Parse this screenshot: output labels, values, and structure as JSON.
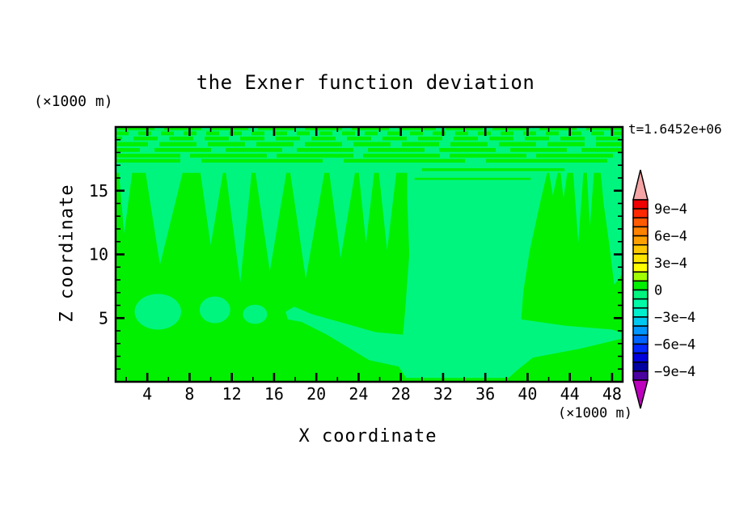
{
  "title": "the Exner function deviation",
  "labels": {
    "y_unit": "(×1000 m)",
    "x_unit": "(×1000 m)",
    "x_axis": "X coordinate",
    "y_axis": "Z coordinate",
    "time": "t=1.6452e+06"
  },
  "chart_data": {
    "type": "heatmap",
    "subtype": "filled-contour",
    "title": "the Exner function deviation",
    "xlabel": "X coordinate",
    "ylabel": "Z coordinate",
    "x_unit": "(×1000 m)",
    "y_unit": "(×1000 m)",
    "time_annotation": "t=1.6452e+06",
    "xlim": [
      1,
      49
    ],
    "ylim": [
      0,
      20
    ],
    "grid": false,
    "x_major_ticks": [
      4,
      8,
      12,
      16,
      20,
      24,
      28,
      32,
      36,
      40,
      44,
      48
    ],
    "x_minor_ticks": [
      2,
      6,
      10,
      14,
      18,
      22,
      26,
      30,
      34,
      38,
      42,
      46
    ],
    "y_major_ticks": [
      5,
      10,
      15
    ],
    "y_minor_ticks": [
      1,
      2,
      3,
      4,
      6,
      7,
      8,
      9,
      11,
      12,
      13,
      14,
      16,
      17,
      18,
      19
    ],
    "background_level_range": [
      0,
      0.0001
    ],
    "background_level_color": "#00F000",
    "feature_level_range": [
      -0.0001,
      0
    ],
    "feature_level_color": "#00F57F",
    "features": {
      "upper_band": {
        "z_top": 20,
        "z_bottom": 16.4
      },
      "streak_rows": [
        {
          "z": 19.87,
          "h": 0.26,
          "color": "bg",
          "dash": 999,
          "gap": 1,
          "offset": 0
        },
        {
          "z": 19.87,
          "h": 0.2,
          "color": "feature",
          "dash": 12,
          "gap": 46,
          "offset": 10
        },
        {
          "z": 19.5,
          "h": 0.3,
          "color": "bg",
          "dash": 16,
          "gap": 12,
          "offset": 0
        },
        {
          "z": 19.1,
          "h": 0.3,
          "color": "bg",
          "dash": 30,
          "gap": 14,
          "offset": 22
        },
        {
          "z": 18.65,
          "h": 0.33,
          "color": "bg",
          "dash": 46,
          "gap": 14,
          "offset": 6
        },
        {
          "z": 18.2,
          "h": 0.3,
          "color": "bg",
          "dash": 70,
          "gap": 18,
          "offset": 40
        },
        {
          "z": 17.75,
          "h": 0.3,
          "color": "bg",
          "dash": 95,
          "gap": 12,
          "offset": 15
        },
        {
          "z": 17.35,
          "h": 0.28,
          "color": "bg",
          "dash": 150,
          "gap": 26,
          "offset": 70
        }
      ],
      "green_cuts": [
        {
          "x0": 30.0,
          "x1": 43.5,
          "z": 16.65,
          "h": 0.22
        },
        {
          "x0": 29.3,
          "x1": 40.3,
          "z": 15.93,
          "h": 0.16
        }
      ],
      "wedges": [
        [
          1.3,
          2.6,
          1.8,
          11.6
        ],
        [
          3.8,
          7.4,
          5.2,
          9.2
        ],
        [
          9.0,
          11.2,
          10.0,
          10.7
        ],
        [
          11.4,
          13.9,
          12.8,
          7.8
        ],
        [
          14.2,
          17.2,
          15.6,
          8.7
        ],
        [
          17.5,
          20.8,
          19.0,
          8.1
        ],
        [
          21.2,
          23.7,
          22.3,
          9.7
        ],
        [
          24.0,
          25.5,
          24.7,
          10.9
        ],
        [
          25.9,
          27.6,
          26.7,
          10.3
        ],
        [
          42.0,
          42.9,
          42.4,
          14.6
        ],
        [
          43.1,
          43.8,
          43.4,
          14.4
        ],
        [
          44.3,
          45.3,
          44.8,
          10.9
        ],
        [
          45.6,
          46.3,
          45.9,
          12.2
        ]
      ],
      "right_edge_wedge": [
        [
          46.9,
          16.6
        ],
        [
          49.0,
          16.6
        ],
        [
          49.0,
          8.5
        ],
        [
          48.2,
          7.6
        ],
        [
          47.7,
          11.0
        ],
        [
          47.2,
          14.0
        ]
      ],
      "central_mass": [
        [
          28.6,
          16.6
        ],
        [
          41.9,
          16.6
        ],
        [
          41.2,
          14.1
        ],
        [
          40.2,
          10.3
        ],
        [
          39.6,
          7.1
        ],
        [
          39.4,
          4.9
        ],
        [
          43.6,
          4.4
        ],
        [
          48.0,
          4.1
        ],
        [
          49.0,
          3.8
        ],
        [
          49.0,
          3.4
        ],
        [
          45.0,
          2.6
        ],
        [
          40.5,
          1.9
        ],
        [
          39.0,
          0.9
        ],
        [
          38.2,
          0.3
        ],
        [
          28.5,
          0.3
        ],
        [
          27.8,
          1.2
        ],
        [
          25.0,
          1.7
        ],
        [
          21.0,
          3.7
        ],
        [
          18.6,
          4.7
        ],
        [
          17.3,
          4.9
        ],
        [
          17.1,
          5.5
        ],
        [
          17.9,
          5.9
        ],
        [
          19.6,
          5.3
        ],
        [
          22.6,
          4.6
        ],
        [
          25.6,
          3.9
        ],
        [
          28.2,
          3.7
        ],
        [
          28.4,
          5.5
        ],
        [
          28.8,
          10.0
        ],
        [
          28.6,
          14.5
        ]
      ],
      "blobs": [
        [
          5.0,
          5.5,
          2.2,
          1.4
        ],
        [
          10.4,
          5.65,
          1.45,
          1.05
        ],
        [
          14.2,
          5.3,
          1.15,
          0.75
        ]
      ]
    },
    "colorbar": {
      "level_max": 0.001,
      "level_min": -0.001,
      "level_step": 0.0001,
      "tick_labels": [
        "9e−4",
        "6e−4",
        "3e−4",
        "0",
        "−3e−4",
        "−6e−4",
        "−9e−4"
      ],
      "label_every_n_segments": 3,
      "segment_colors_top_to_bottom": [
        "#F00000",
        "#FF2800",
        "#FF5A00",
        "#FF8200",
        "#FFA000",
        "#FFC800",
        "#FFE600",
        "#FFFF00",
        "#A0FF00",
        "#00F000",
        "#00F57F",
        "#00FAA5",
        "#00F0CD",
        "#00C8F0",
        "#0096FF",
        "#0064FF",
        "#0028FF",
        "#0000DC",
        "#0000A0",
        "#4B00A0"
      ],
      "over_arrow_color": "#F5A5A5",
      "under_arrow_color": "#BE00BE"
    }
  }
}
